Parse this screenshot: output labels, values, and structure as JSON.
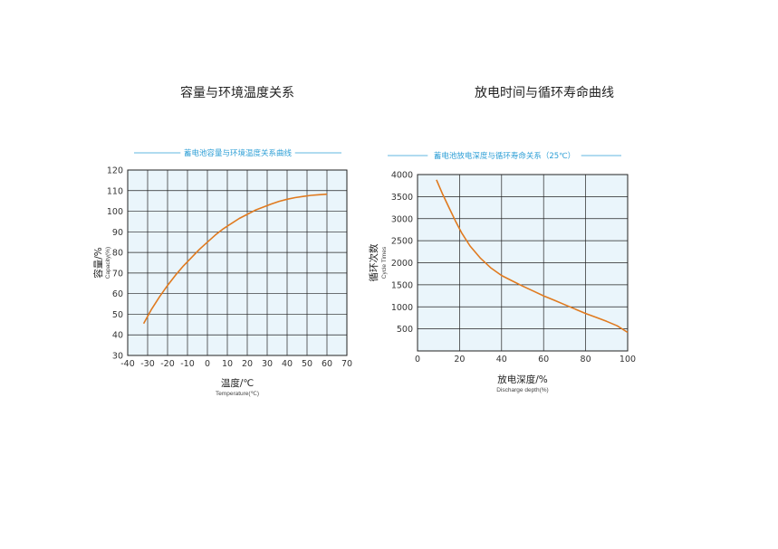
{
  "page": {
    "heading_left": "容量与环境温度关系",
    "heading_right": "放电时间与循环寿命曲线"
  },
  "colors": {
    "curve": "#e07a1f",
    "plot_bg": "#eaf5fb",
    "subtitle": "#2e9fd6",
    "grid": "#222222"
  },
  "chart_data": [
    {
      "type": "line",
      "title": "蓄电池容量与环境温度关系曲线",
      "xlabel": "温度/℃",
      "xlabel_en": "Temperature(℃)",
      "ylabel": "容量/%",
      "ylabel_en": "Capacity(%)",
      "xlim": [
        -40,
        70
      ],
      "ylim": [
        30,
        120
      ],
      "xticks": [
        -40,
        -30,
        -20,
        -10,
        0,
        10,
        20,
        30,
        40,
        50,
        60,
        70
      ],
      "yticks": [
        30,
        40,
        50,
        60,
        70,
        80,
        90,
        100,
        110,
        120
      ],
      "grid": true,
      "series": [
        {
          "x": [
            -32,
            -28,
            -24,
            -20,
            -16,
            -12,
            -8,
            -4,
            0,
            4,
            8,
            12,
            16,
            20,
            24,
            28,
            32,
            36,
            40,
            44,
            48,
            52,
            56,
            60
          ],
          "y": [
            45.5,
            52.5,
            58.5,
            64,
            69,
            73.5,
            77.5,
            81.5,
            85,
            88.5,
            91.5,
            94,
            96.5,
            98.5,
            100.5,
            102,
            103.5,
            104.8,
            105.8,
            106.6,
            107.2,
            107.7,
            108,
            108.3
          ]
        }
      ]
    },
    {
      "type": "line",
      "title": "蓄电池放电深度与循环寿命关系（25℃）",
      "xlabel": "放电深度/%",
      "xlabel_en": "Discharge depth(%)",
      "ylabel": "循环次数",
      "ylabel_en": "Cycle Times",
      "xlim": [
        0,
        100
      ],
      "ylim": [
        0,
        4000
      ],
      "xticks": [
        0,
        20,
        40,
        60,
        80,
        100
      ],
      "yticks": [
        500,
        1000,
        1500,
        2000,
        2500,
        3000,
        3500,
        4000
      ],
      "grid": true,
      "series": [
        {
          "x": [
            9,
            12,
            15,
            18,
            21,
            25,
            30,
            35,
            40,
            45,
            50,
            55,
            60,
            65,
            70,
            75,
            80,
            85,
            90,
            95,
            100
          ],
          "y": [
            3880,
            3550,
            3250,
            2950,
            2680,
            2380,
            2100,
            1880,
            1710,
            1590,
            1470,
            1360,
            1250,
            1150,
            1050,
            950,
            850,
            760,
            670,
            570,
            420
          ]
        }
      ]
    }
  ]
}
